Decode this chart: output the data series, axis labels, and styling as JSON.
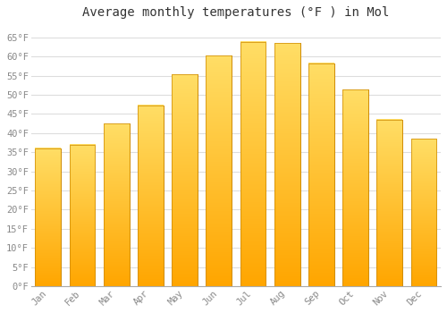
{
  "title": "Average monthly temperatures (°F ) in Mol",
  "months": [
    "Jan",
    "Feb",
    "Mar",
    "Apr",
    "May",
    "Jun",
    "Jul",
    "Aug",
    "Sep",
    "Oct",
    "Nov",
    "Dec"
  ],
  "values": [
    36.0,
    37.0,
    42.5,
    47.3,
    55.4,
    60.3,
    63.9,
    63.5,
    58.3,
    51.3,
    43.5,
    38.5
  ],
  "bar_color_top": "#FFD966",
  "bar_color_bottom": "#FFA500",
  "bar_edge_color": "#CC8800",
  "background_color": "#FFFFFF",
  "grid_color": "#DDDDDD",
  "title_fontsize": 10,
  "tick_fontsize": 7.5,
  "ylim": [
    0,
    68
  ],
  "yticks": [
    0,
    5,
    10,
    15,
    20,
    25,
    30,
    35,
    40,
    45,
    50,
    55,
    60,
    65
  ]
}
